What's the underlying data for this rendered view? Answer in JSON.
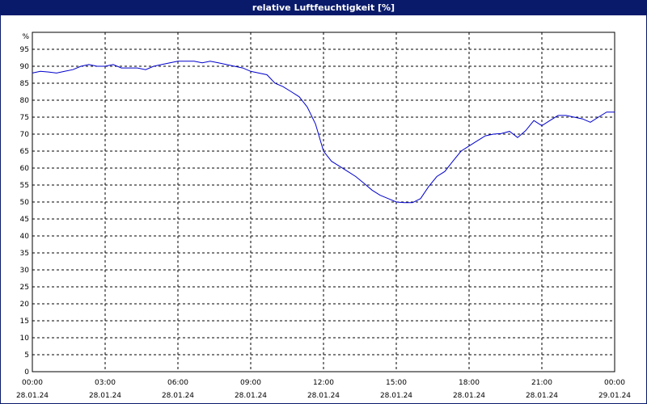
{
  "chart_data": {
    "type": "line",
    "title": "relative Luftfeuchtigkeit [%]",
    "ylabel": "%",
    "ylim": [
      0,
      95
    ],
    "yticks": [
      0,
      5,
      10,
      15,
      20,
      25,
      30,
      35,
      40,
      45,
      50,
      55,
      60,
      65,
      70,
      75,
      80,
      85,
      90,
      95
    ],
    "xlim": [
      0,
      24
    ],
    "xticks": [
      {
        "hour": 0,
        "time": "00:00",
        "date": "28.01.24"
      },
      {
        "hour": 3,
        "time": "03:00",
        "date": "28.01.24"
      },
      {
        "hour": 6,
        "time": "06:00",
        "date": "28.01.24"
      },
      {
        "hour": 9,
        "time": "09:00",
        "date": "28.01.24"
      },
      {
        "hour": 12,
        "time": "12:00",
        "date": "28.01.24"
      },
      {
        "hour": 15,
        "time": "15:00",
        "date": "28.01.24"
      },
      {
        "hour": 18,
        "time": "18:00",
        "date": "28.01.24"
      },
      {
        "hour": 21,
        "time": "21:00",
        "date": "28.01.24"
      },
      {
        "hour": 24,
        "time": "00:00",
        "date": "29.01.24"
      }
    ],
    "grid": true,
    "series": [
      {
        "color": "#0000cc",
        "x": [
          0.0,
          0.33,
          0.67,
          1.0,
          1.33,
          1.67,
          2.0,
          2.33,
          2.67,
          3.0,
          3.33,
          3.67,
          4.0,
          4.33,
          4.67,
          5.0,
          5.33,
          5.67,
          6.0,
          6.33,
          6.67,
          7.0,
          7.33,
          7.67,
          8.0,
          8.33,
          8.67,
          9.0,
          9.33,
          9.67,
          10.0,
          10.33,
          10.67,
          11.0,
          11.33,
          11.67,
          12.0,
          12.33,
          12.67,
          13.0,
          13.33,
          13.67,
          14.0,
          14.33,
          14.67,
          15.0,
          15.33,
          15.67,
          16.0,
          16.33,
          16.67,
          17.0,
          17.33,
          17.67,
          18.0,
          18.33,
          18.67,
          19.0,
          19.33,
          19.67,
          20.0,
          20.33,
          20.67,
          21.0,
          21.33,
          21.67,
          22.0,
          22.33,
          22.67,
          23.0,
          23.33,
          23.67,
          24.0
        ],
        "y": [
          88.0,
          88.5,
          88.3,
          88.0,
          88.5,
          89.0,
          90.0,
          90.5,
          90.0,
          90.0,
          90.5,
          89.5,
          89.5,
          89.5,
          89.0,
          90.0,
          90.5,
          91.0,
          91.5,
          91.5,
          91.5,
          91.0,
          91.5,
          91.0,
          90.5,
          90.0,
          89.5,
          88.5,
          88.0,
          87.5,
          85.0,
          84.0,
          82.5,
          81.0,
          78.0,
          73.0,
          65.0,
          62.0,
          60.5,
          59.0,
          57.5,
          55.5,
          53.5,
          52.0,
          51.0,
          50.0,
          49.8,
          49.8,
          51.0,
          54.5,
          57.5,
          59.0,
          62.0,
          65.0,
          66.5,
          68.0,
          69.5,
          70.0,
          70.2,
          70.8,
          69.0,
          71.0,
          74.0,
          72.5,
          74.0,
          75.5,
          75.5,
          75.0,
          74.5,
          73.5,
          75.0,
          76.5,
          76.5
        ]
      }
    ]
  }
}
